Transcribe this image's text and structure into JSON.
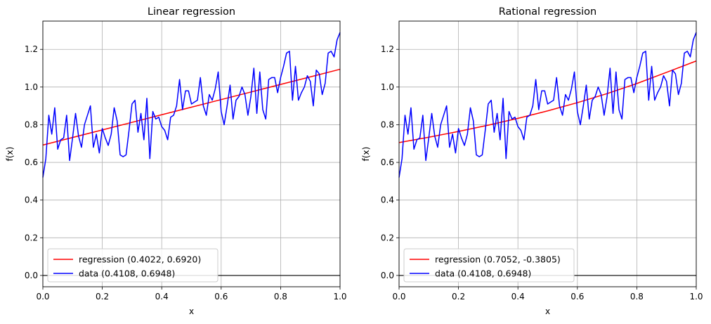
{
  "chart_data": [
    {
      "type": "line",
      "title": "Linear regression",
      "xlabel": "x",
      "ylabel": "f(x)",
      "xlim": [
        0,
        1
      ],
      "ylim": [
        -0.06,
        1.35
      ],
      "xticks": [
        "0.0",
        "0.2",
        "0.4",
        "0.6",
        "0.8",
        "1.0"
      ],
      "yticks": [
        "0.0",
        "0.2",
        "0.4",
        "0.6",
        "0.8",
        "1.0",
        "1.2"
      ],
      "grid": true,
      "legend_position": "lower-left",
      "series": [
        {
          "name": "regression (0.4022, 0.6920)",
          "color": "#ff0000",
          "x": [
            0,
            0.1,
            0.2,
            0.3,
            0.4,
            0.5,
            0.6,
            0.7,
            0.8,
            0.9,
            1.0
          ],
          "values": [
            0.692,
            0.7322,
            0.7724,
            0.8127,
            0.8529,
            0.8931,
            0.9333,
            0.9735,
            1.0138,
            1.054,
            1.0942
          ]
        },
        {
          "name": "data (0.4108, 0.6948)",
          "color": "#0000ff",
          "x": [
            0,
            0.01,
            0.02,
            0.03,
            0.04,
            0.05,
            0.06,
            0.07,
            0.08,
            0.09,
            0.1,
            0.11,
            0.12,
            0.13,
            0.14,
            0.15,
            0.16,
            0.17,
            0.18,
            0.19,
            0.2,
            0.21,
            0.22,
            0.23,
            0.24,
            0.25,
            0.26,
            0.27,
            0.28,
            0.29,
            0.3,
            0.31,
            0.32,
            0.33,
            0.34,
            0.35,
            0.36,
            0.37,
            0.38,
            0.39,
            0.4,
            0.41,
            0.42,
            0.43,
            0.44,
            0.45,
            0.46,
            0.47,
            0.48,
            0.49,
            0.5,
            0.51,
            0.52,
            0.53,
            0.54,
            0.55,
            0.56,
            0.57,
            0.58,
            0.59,
            0.6,
            0.61,
            0.62,
            0.63,
            0.64,
            0.65,
            0.66,
            0.67,
            0.68,
            0.69,
            0.7,
            0.71,
            0.72,
            0.73,
            0.74,
            0.75,
            0.76,
            0.77,
            0.78,
            0.79,
            0.8,
            0.81,
            0.82,
            0.83,
            0.84,
            0.85,
            0.86,
            0.87,
            0.88,
            0.89,
            0.9,
            0.91,
            0.92,
            0.93,
            0.94,
            0.95,
            0.96,
            0.97,
            0.98,
            0.99,
            1.0
          ],
          "values": [
            0.52,
            0.62,
            0.85,
            0.75,
            0.89,
            0.67,
            0.72,
            0.73,
            0.85,
            0.61,
            0.73,
            0.86,
            0.74,
            0.68,
            0.8,
            0.85,
            0.9,
            0.68,
            0.75,
            0.65,
            0.78,
            0.73,
            0.69,
            0.75,
            0.89,
            0.82,
            0.64,
            0.63,
            0.64,
            0.77,
            0.91,
            0.93,
            0.76,
            0.86,
            0.72,
            0.94,
            0.62,
            0.87,
            0.83,
            0.84,
            0.79,
            0.77,
            0.72,
            0.84,
            0.85,
            0.9,
            1.04,
            0.88,
            0.98,
            0.98,
            0.91,
            0.92,
            0.93,
            1.05,
            0.9,
            0.85,
            0.96,
            0.93,
            0.99,
            1.08,
            0.87,
            0.8,
            0.9,
            1.01,
            0.83,
            0.93,
            0.95,
            1.0,
            0.96,
            0.85,
            0.95,
            1.1,
            0.86,
            1.08,
            0.88,
            0.83,
            1.04,
            1.05,
            1.05,
            0.97,
            1.05,
            1.11,
            1.18,
            1.19,
            0.93,
            1.11,
            0.93,
            0.97,
            1.0,
            1.06,
            1.03,
            0.9,
            1.09,
            1.07,
            0.96,
            1.02,
            1.18,
            1.19,
            1.16,
            1.25,
            1.29
          ]
        }
      ]
    },
    {
      "type": "line",
      "title": "Rational regression",
      "xlabel": "x",
      "ylabel": "f(x)",
      "xlim": [
        0,
        1
      ],
      "ylim": [
        -0.06,
        1.35
      ],
      "xticks": [
        "0.0",
        "0.2",
        "0.4",
        "0.6",
        "0.8",
        "1.0"
      ],
      "yticks": [
        "0.0",
        "0.2",
        "0.4",
        "0.6",
        "0.8",
        "1.0",
        "1.2"
      ],
      "grid": true,
      "legend_position": "lower-left",
      "series": [
        {
          "name": "regression (0.7052, -0.3805)",
          "color": "#ff0000",
          "x": [
            0,
            0.1,
            0.2,
            0.3,
            0.4,
            0.5,
            0.6,
            0.7,
            0.8,
            0.9,
            1.0
          ],
          "values": [
            0.7052,
            0.7335,
            0.7642,
            0.7975,
            0.8337,
            0.8734,
            0.917,
            0.9651,
            1.0185,
            1.0781,
            1.1383
          ]
        },
        {
          "name": "data (0.4108, 0.6948)",
          "color": "#0000ff",
          "x": [
            0,
            0.01,
            0.02,
            0.03,
            0.04,
            0.05,
            0.06,
            0.07,
            0.08,
            0.09,
            0.1,
            0.11,
            0.12,
            0.13,
            0.14,
            0.15,
            0.16,
            0.17,
            0.18,
            0.19,
            0.2,
            0.21,
            0.22,
            0.23,
            0.24,
            0.25,
            0.26,
            0.27,
            0.28,
            0.29,
            0.3,
            0.31,
            0.32,
            0.33,
            0.34,
            0.35,
            0.36,
            0.37,
            0.38,
            0.39,
            0.4,
            0.41,
            0.42,
            0.43,
            0.44,
            0.45,
            0.46,
            0.47,
            0.48,
            0.49,
            0.5,
            0.51,
            0.52,
            0.53,
            0.54,
            0.55,
            0.56,
            0.57,
            0.58,
            0.59,
            0.6,
            0.61,
            0.62,
            0.63,
            0.64,
            0.65,
            0.66,
            0.67,
            0.68,
            0.69,
            0.7,
            0.71,
            0.72,
            0.73,
            0.74,
            0.75,
            0.76,
            0.77,
            0.78,
            0.79,
            0.8,
            0.81,
            0.82,
            0.83,
            0.84,
            0.85,
            0.86,
            0.87,
            0.88,
            0.89,
            0.9,
            0.91,
            0.92,
            0.93,
            0.94,
            0.95,
            0.96,
            0.97,
            0.98,
            0.99,
            1.0
          ],
          "values": [
            0.52,
            0.62,
            0.85,
            0.75,
            0.89,
            0.67,
            0.72,
            0.73,
            0.85,
            0.61,
            0.73,
            0.86,
            0.74,
            0.68,
            0.8,
            0.85,
            0.9,
            0.68,
            0.75,
            0.65,
            0.78,
            0.73,
            0.69,
            0.75,
            0.89,
            0.82,
            0.64,
            0.63,
            0.64,
            0.77,
            0.91,
            0.93,
            0.76,
            0.86,
            0.72,
            0.94,
            0.62,
            0.87,
            0.83,
            0.84,
            0.79,
            0.77,
            0.72,
            0.84,
            0.85,
            0.9,
            1.04,
            0.88,
            0.98,
            0.98,
            0.91,
            0.92,
            0.93,
            1.05,
            0.9,
            0.85,
            0.96,
            0.93,
            0.99,
            1.08,
            0.87,
            0.8,
            0.9,
            1.01,
            0.83,
            0.93,
            0.95,
            1.0,
            0.96,
            0.85,
            0.95,
            1.1,
            0.86,
            1.08,
            0.88,
            0.83,
            1.04,
            1.05,
            1.05,
            0.97,
            1.05,
            1.11,
            1.18,
            1.19,
            0.93,
            1.11,
            0.93,
            0.97,
            1.0,
            1.06,
            1.03,
            0.9,
            1.09,
            1.07,
            0.96,
            1.02,
            1.18,
            1.19,
            1.16,
            1.25,
            1.29
          ]
        }
      ]
    }
  ]
}
